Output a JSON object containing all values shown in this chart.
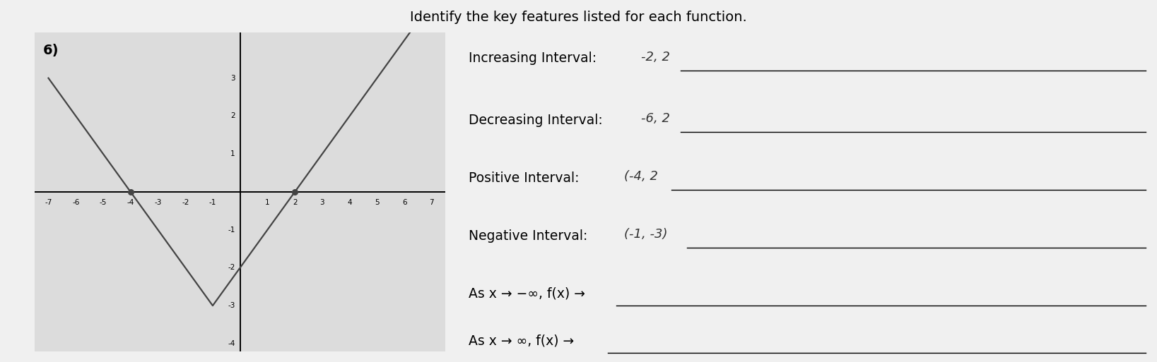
{
  "header_text": "Identify the key features listed for each function.",
  "problem_number": "6)",
  "graph": {
    "xlim": [
      -7.5,
      7.5
    ],
    "ylim": [
      -4.2,
      4.2
    ],
    "xtick_vals": [
      -7,
      -6,
      -5,
      -4,
      -3,
      -2,
      -1,
      1,
      2,
      3,
      4,
      5,
      6,
      7
    ],
    "ytick_vals": [
      -4,
      -3,
      -2,
      -1,
      1,
      2,
      3
    ],
    "line_points_x": [
      -7,
      -4,
      -1,
      2,
      7
    ],
    "line_points_y": [
      3,
      0,
      -3,
      0,
      5
    ],
    "line_color": "#444444",
    "line_width": 1.6,
    "dot_points_x": [
      -4,
      2
    ],
    "dot_points_y": [
      0,
      0
    ],
    "dot_color": "#444444",
    "dot_size": 30,
    "grid_color": "#bbbbbb",
    "bg_color": "#e4e4e4"
  },
  "questions": [
    {
      "label": "Increasing Interval:",
      "answer": "-2, 2",
      "answer_style": "handwritten"
    },
    {
      "label": "Decreasing Interval:",
      "answer": "-6, 2",
      "answer_style": "handwritten"
    },
    {
      "label": "Positive Interval:",
      "answer": "(-4, 2",
      "answer_style": "handwritten"
    },
    {
      "label": "Negative Interval:",
      "answer": "(-1, -3)",
      "answer_style": "handwritten"
    },
    {
      "label": "As x → −∞, f(x) →",
      "answer": "",
      "answer_style": "blank"
    },
    {
      "label": "As x → ∞, f(x) →",
      "answer": "",
      "answer_style": "blank"
    }
  ],
  "label_fontsize": 13.5,
  "answer_fontsize": 13,
  "header_fontsize": 14,
  "graph_bg": "#dcdcdc",
  "page_bg": "#f0f0f0"
}
